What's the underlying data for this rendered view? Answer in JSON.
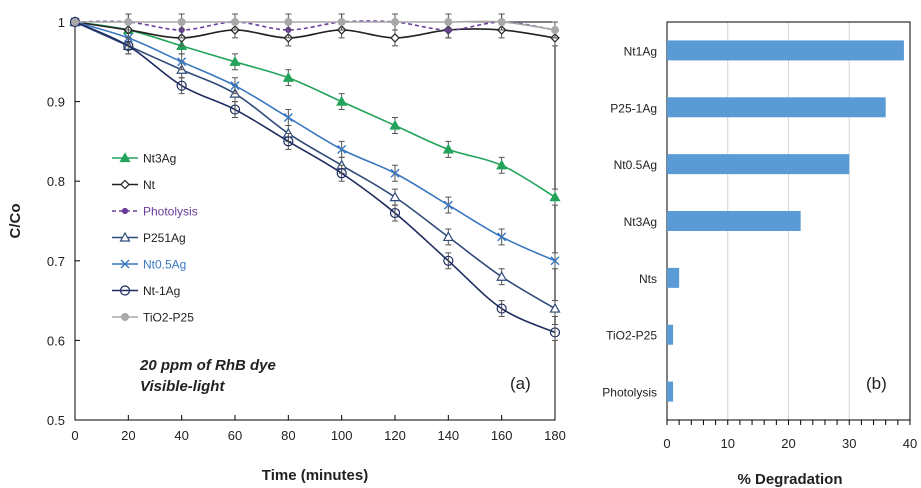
{
  "chart_data": [
    {
      "type": "line",
      "panel_label": "(a)",
      "xlabel": "Time (minutes)",
      "ylabel": "C/Co",
      "annotation": [
        "20 ppm of RhB dye",
        "Visible-light"
      ],
      "xlim": [
        0,
        180
      ],
      "ylim": [
        0.5,
        1.0
      ],
      "x_ticks": [
        0,
        20,
        40,
        60,
        80,
        100,
        120,
        140,
        160,
        180
      ],
      "y_ticks": [
        0.5,
        0.6,
        0.7,
        0.8,
        0.9,
        1.0
      ],
      "y_tick_labels": [
        "0.5",
        "0.6",
        "0.7",
        "0.8",
        "0.9",
        "1"
      ],
      "grid": false,
      "legend_position": "left-center",
      "x": [
        0,
        20,
        40,
        60,
        80,
        100,
        120,
        140,
        160,
        180
      ],
      "series": [
        {
          "name": "Nt3Ag",
          "color": "#22a35a",
          "marker": "triangle-filled",
          "dash": false,
          "label_color": "#222222",
          "values": [
            1.0,
            0.99,
            0.97,
            0.95,
            0.93,
            0.9,
            0.87,
            0.84,
            0.82,
            0.78
          ]
        },
        {
          "name": "Nt",
          "color": "#222222",
          "marker": "diamond-open",
          "dash": false,
          "label_color": "#222222",
          "values": [
            1.0,
            0.99,
            0.98,
            0.99,
            0.98,
            0.99,
            0.98,
            0.99,
            0.99,
            0.98
          ]
        },
        {
          "name": "Photolysis",
          "color": "#6a3c9c",
          "marker": "circle-filled-small",
          "dash": true,
          "label_color": "#6a3c9c",
          "values": [
            1.0,
            1.0,
            0.99,
            1.0,
            0.99,
            1.0,
            1.0,
            0.99,
            1.0,
            0.99
          ]
        },
        {
          "name": "P251Ag",
          "color": "#2f4a7a",
          "marker": "triangle-open",
          "dash": false,
          "label_color": "#222222",
          "values": [
            1.0,
            0.97,
            0.94,
            0.91,
            0.86,
            0.82,
            0.78,
            0.73,
            0.68,
            0.64
          ]
        },
        {
          "name": "Nt0.5Ag",
          "color": "#3a78c0",
          "marker": "x",
          "dash": false,
          "label_color": "#3a78c0",
          "values": [
            1.0,
            0.98,
            0.95,
            0.92,
            0.88,
            0.84,
            0.81,
            0.77,
            0.73,
            0.7
          ]
        },
        {
          "name": "Nt-1Ag",
          "color": "#1e2b5e",
          "marker": "circle-open",
          "dash": false,
          "label_color": "#222222",
          "values": [
            1.0,
            0.97,
            0.92,
            0.89,
            0.85,
            0.81,
            0.76,
            0.7,
            0.64,
            0.61
          ]
        },
        {
          "name": "TiO2-P25",
          "color": "#a8a8a8",
          "marker": "circle-filled",
          "dash": false,
          "label_color": "#222222",
          "values": [
            1.0,
            1.0,
            1.0,
            1.0,
            1.0,
            1.0,
            1.0,
            1.0,
            1.0,
            0.99
          ]
        }
      ],
      "error_bar": 0.01
    },
    {
      "type": "bar",
      "orientation": "horizontal",
      "panel_label": "(b)",
      "xlabel": "% Degradation",
      "xlim": [
        0,
        40
      ],
      "x_ticks": [
        0,
        10,
        20,
        30,
        40
      ],
      "grid": true,
      "bar_color": "#5b9bd5",
      "categories": [
        "Nt1Ag",
        "P25-1Ag",
        "Nt0.5Ag",
        "Nt3Ag",
        "Nts",
        "TiO2-P25",
        "Photolysis"
      ],
      "values": [
        39,
        36,
        30,
        22,
        2,
        1,
        1
      ]
    }
  ]
}
